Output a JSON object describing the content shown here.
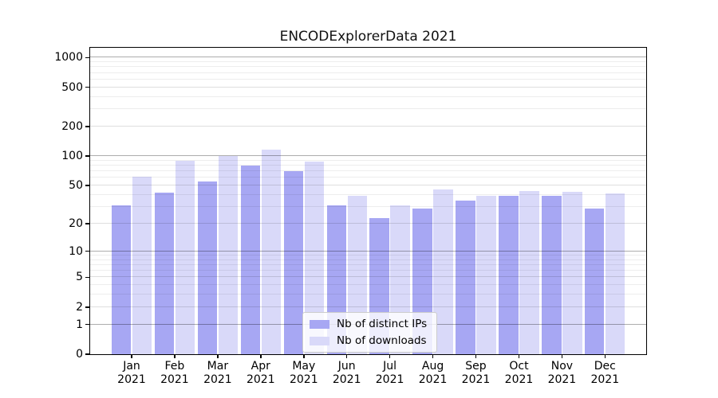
{
  "chart_data": {
    "type": "bar",
    "title": "ENCODExplorerData 2021",
    "categories": [
      "Jan 2021",
      "Feb 2021",
      "Mar 2021",
      "Apr 2021",
      "May 2021",
      "Jun 2021",
      "Jul 2021",
      "Aug 2021",
      "Sep 2021",
      "Oct 2021",
      "Nov 2021",
      "Dec 2021"
    ],
    "series": [
      {
        "name": "Nb of distinct IPs",
        "color": "#a7a7f3",
        "values": [
          31,
          42,
          55,
          80,
          70,
          31,
          23,
          29,
          35,
          39,
          39,
          29
        ]
      },
      {
        "name": "Nb of downloads",
        "color": "#d9d9f9",
        "values": [
          62,
          90,
          100,
          117,
          88,
          39,
          31,
          45,
          39,
          44,
          43,
          41
        ]
      }
    ],
    "y_ticks": [
      0,
      1,
      2,
      5,
      10,
      20,
      50,
      100,
      200,
      500,
      1000
    ],
    "ylim": [
      0,
      1255
    ],
    "y_scale": "log1p",
    "grid": "on",
    "legend_position": "lower-center-inside"
  }
}
